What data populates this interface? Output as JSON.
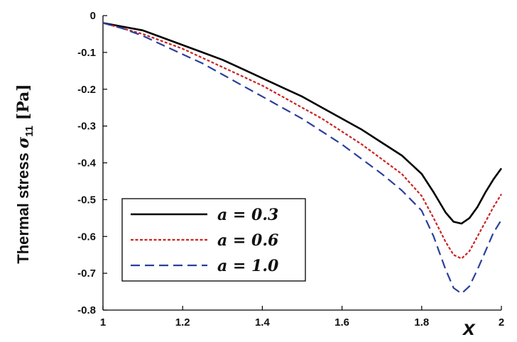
{
  "chart_data": {
    "type": "line",
    "title": "",
    "xlabel": "x",
    "ylabel_main": "Thermal stress ",
    "ylabel_symbol": "σ",
    "ylabel_sub": "11",
    "ylabel_unit": " [Pa]",
    "xlim": [
      1,
      2
    ],
    "ylim": [
      -0.8,
      0
    ],
    "x_ticks": [
      "1",
      "1.2",
      "1.4",
      "1.6",
      "1.8",
      "2"
    ],
    "y_ticks": [
      "0",
      "-0.1",
      "-0.2",
      "-0.3",
      "-0.4",
      "-0.5",
      "-0.6",
      "-0.7",
      "-0.8"
    ],
    "grid": false,
    "legend_position": "bottom-left",
    "series": [
      {
        "name": "a = 0.3",
        "color": "#000000",
        "style": "solid",
        "x": [
          1.0,
          1.05,
          1.1,
          1.15,
          1.2,
          1.25,
          1.3,
          1.35,
          1.4,
          1.45,
          1.5,
          1.55,
          1.6,
          1.65,
          1.7,
          1.75,
          1.8,
          1.83,
          1.86,
          1.88,
          1.9,
          1.92,
          1.94,
          1.96,
          1.98,
          2.0
        ],
        "y": [
          -0.02,
          -0.03,
          -0.04,
          -0.06,
          -0.08,
          -0.1,
          -0.12,
          -0.145,
          -0.17,
          -0.195,
          -0.22,
          -0.25,
          -0.28,
          -0.31,
          -0.345,
          -0.38,
          -0.43,
          -0.48,
          -0.535,
          -0.56,
          -0.565,
          -0.55,
          -0.52,
          -0.48,
          -0.445,
          -0.415
        ]
      },
      {
        "name": "a = 0.6",
        "color": "#cc2222",
        "style": "dotted",
        "x": [
          1.0,
          1.05,
          1.1,
          1.15,
          1.2,
          1.25,
          1.3,
          1.35,
          1.4,
          1.45,
          1.5,
          1.55,
          1.6,
          1.65,
          1.7,
          1.75,
          1.8,
          1.83,
          1.86,
          1.88,
          1.9,
          1.92,
          1.94,
          1.96,
          1.98,
          2.0
        ],
        "y": [
          -0.02,
          -0.035,
          -0.05,
          -0.07,
          -0.09,
          -0.115,
          -0.14,
          -0.165,
          -0.19,
          -0.22,
          -0.25,
          -0.28,
          -0.315,
          -0.35,
          -0.39,
          -0.43,
          -0.49,
          -0.55,
          -0.615,
          -0.65,
          -0.66,
          -0.64,
          -0.6,
          -0.56,
          -0.52,
          -0.485
        ]
      },
      {
        "name": "a = 1.0",
        "color": "#2b3f9e",
        "style": "dashed",
        "x": [
          1.0,
          1.05,
          1.1,
          1.15,
          1.2,
          1.25,
          1.3,
          1.35,
          1.4,
          1.45,
          1.5,
          1.55,
          1.6,
          1.65,
          1.7,
          1.75,
          1.8,
          1.83,
          1.86,
          1.88,
          1.9,
          1.92,
          1.94,
          1.96,
          1.98,
          2.0
        ],
        "y": [
          -0.02,
          -0.035,
          -0.055,
          -0.08,
          -0.105,
          -0.13,
          -0.16,
          -0.19,
          -0.22,
          -0.25,
          -0.28,
          -0.315,
          -0.35,
          -0.39,
          -0.43,
          -0.475,
          -0.53,
          -0.6,
          -0.69,
          -0.74,
          -0.755,
          -0.735,
          -0.69,
          -0.64,
          -0.59,
          -0.555
        ]
      }
    ]
  }
}
